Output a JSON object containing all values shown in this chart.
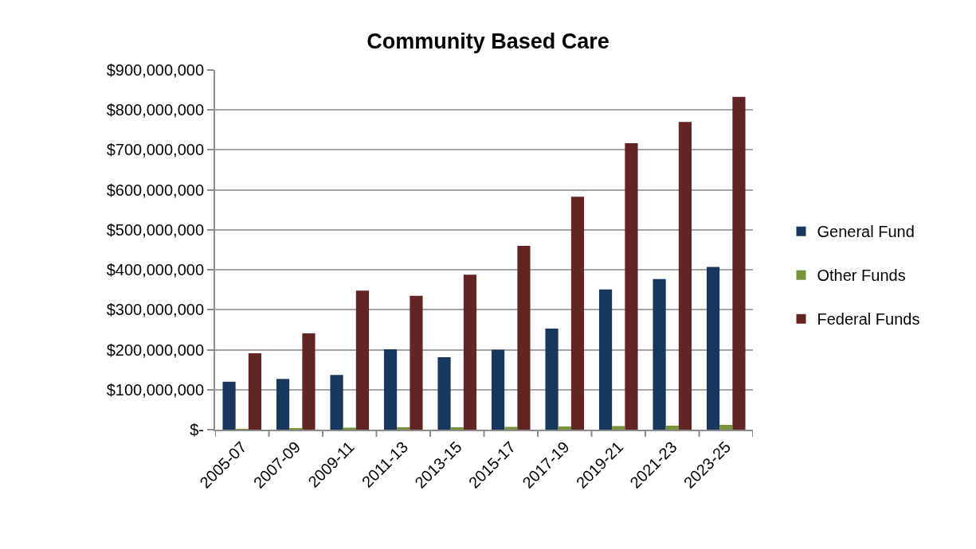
{
  "chart_data": {
    "type": "bar",
    "title": "Community Based Care",
    "categories": [
      "2005-07",
      "2007-09",
      "2009-11",
      "2011-13",
      "2013-15",
      "2015-17",
      "2017-19",
      "2019-21",
      "2021-23",
      "2023-25"
    ],
    "series": [
      {
        "name": "General Fund",
        "color": "#17375e",
        "values": [
          120000000,
          127000000,
          137000000,
          201000000,
          181000000,
          200000000,
          253000000,
          351000000,
          377000000,
          407000000
        ]
      },
      {
        "name": "Other Funds",
        "color": "#77933c",
        "values": [
          2000000,
          3000000,
          5000000,
          6000000,
          6000000,
          7000000,
          8000000,
          9000000,
          10000000,
          12000000
        ]
      },
      {
        "name": "Federal Funds",
        "color": "#632523",
        "values": [
          191000000,
          241000000,
          348000000,
          335000000,
          388000000,
          460000000,
          583000000,
          717000000,
          770000000,
          833000000
        ]
      }
    ],
    "ylim": [
      0,
      900000000
    ],
    "yticks": [
      {
        "value": 0,
        "label": "$-"
      },
      {
        "value": 100000000,
        "label": "$100,000,000"
      },
      {
        "value": 200000000,
        "label": "$200,000,000"
      },
      {
        "value": 300000000,
        "label": "$300,000,000"
      },
      {
        "value": 400000000,
        "label": "$400,000,000"
      },
      {
        "value": 500000000,
        "label": "$500,000,000"
      },
      {
        "value": 600000000,
        "label": "$600,000,000"
      },
      {
        "value": 700000000,
        "label": "$700,000,000"
      },
      {
        "value": 800000000,
        "label": "$800,000,000"
      },
      {
        "value": 900000000,
        "label": "$900,000,000"
      }
    ],
    "grid": "y",
    "legend": "right"
  }
}
